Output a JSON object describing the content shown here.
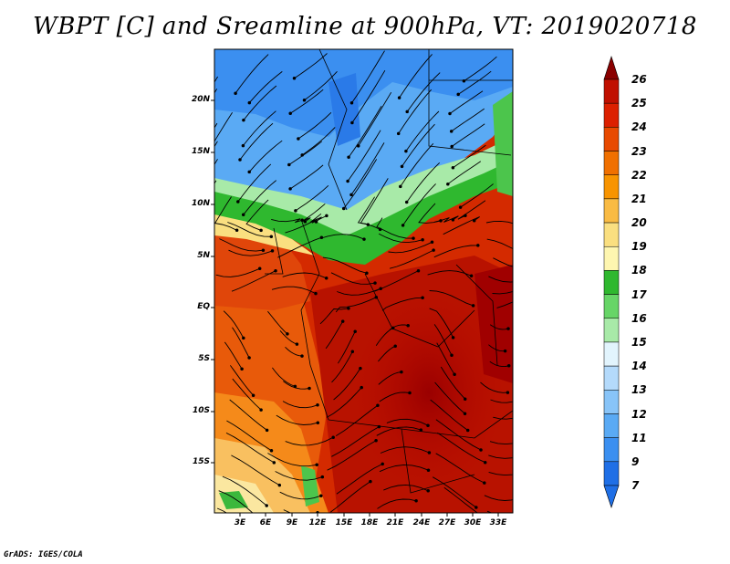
{
  "title": "WBPT [C] and Sreamline at 900hPa, VT: 2019020718",
  "footer": "GrADS: IGES/COLA",
  "map": {
    "lat_labels": [
      "20N",
      "15N",
      "10N",
      "5N",
      "EQ",
      "5S",
      "10S",
      "15S"
    ],
    "lon_labels": [
      "3E",
      "6E",
      "9E",
      "12E",
      "15E",
      "18E",
      "21E",
      "24E",
      "27E",
      "30E",
      "33E"
    ]
  },
  "colorbar": {
    "labels": [
      "26",
      "25",
      "24",
      "23",
      "22",
      "21",
      "20",
      "19",
      "18",
      "17",
      "16",
      "15",
      "14",
      "13",
      "12",
      "11",
      "9",
      "7"
    ],
    "colors": [
      "#a00000",
      "#c01000",
      "#dc2000",
      "#e84a00",
      "#f07000",
      "#f89400",
      "#f9bb44",
      "#fadf80",
      "#fef6b0",
      "#2fb82f",
      "#67d567",
      "#a8eaa8",
      "#e2f4fd",
      "#b4dafb",
      "#88c4f8",
      "#5aaaf4",
      "#3b8ff0",
      "#1f6fe6"
    ]
  }
}
